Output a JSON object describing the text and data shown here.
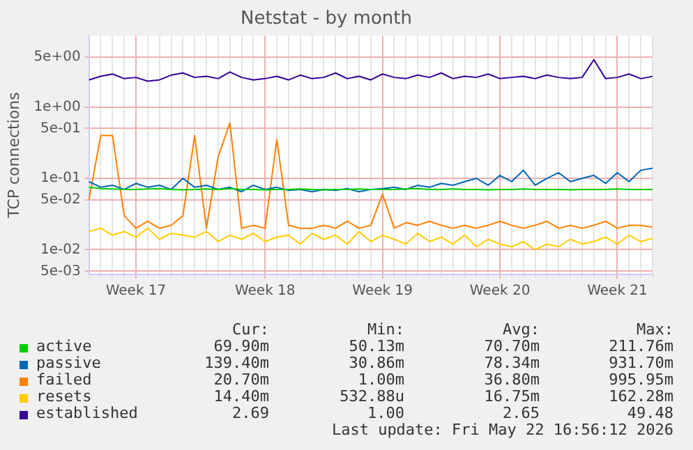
{
  "chart_data": {
    "type": "line",
    "title": "Netstat - by month",
    "ylabel": "TCP connections",
    "categories": [
      null,
      null,
      null,
      null,
      "Week 17",
      null,
      null,
      null,
      null,
      null,
      null,
      null,
      null,
      null,
      null,
      "Week 18",
      null,
      null,
      null,
      null,
      null,
      null,
      null,
      null,
      null,
      "Week 19",
      null,
      null,
      null,
      null,
      null,
      null,
      null,
      null,
      null,
      "Week 20",
      null,
      null,
      null,
      null,
      null,
      null,
      null,
      null,
      null,
      "Week 21",
      null,
      null,
      null
    ],
    "log": "y",
    "ylim": [
      0.0045,
      10
    ],
    "yticks": [
      {
        "value": 5,
        "label": "5e+00"
      },
      {
        "value": 1,
        "label": "1e+00"
      },
      {
        "value": 0.5,
        "label": "5e-01"
      },
      {
        "value": 0.1,
        "label": "1e-01"
      },
      {
        "value": 0.05,
        "label": "5e-02"
      },
      {
        "value": 0.01,
        "label": "1e-02"
      },
      {
        "value": 0.005,
        "label": "5e-03"
      }
    ],
    "grid": true,
    "legend": "bottom",
    "marker": "none",
    "series": [
      {
        "name": "active",
        "color": "#00cc00",
        "values": [
          0.075,
          0.072,
          0.071,
          0.07,
          0.07,
          0.071,
          0.072,
          0.07,
          0.069,
          0.07,
          0.071,
          0.07,
          0.072,
          0.07,
          0.07,
          0.069,
          0.07,
          0.07,
          0.071,
          0.07,
          0.069,
          0.07,
          0.07,
          0.071,
          0.07,
          0.07,
          0.07,
          0.071,
          0.072,
          0.07,
          0.07,
          0.071,
          0.07,
          0.07,
          0.069,
          0.07,
          0.07,
          0.071,
          0.07,
          0.07,
          0.07,
          0.069,
          0.07,
          0.07,
          0.07,
          0.071,
          0.07,
          0.07,
          0.07
        ]
      },
      {
        "name": "passive",
        "color": "#0066b3",
        "values": [
          0.09,
          0.075,
          0.08,
          0.07,
          0.085,
          0.075,
          0.08,
          0.07,
          0.1,
          0.075,
          0.08,
          0.07,
          0.075,
          0.065,
          0.08,
          0.07,
          0.075,
          0.068,
          0.07,
          0.065,
          0.07,
          0.068,
          0.072,
          0.065,
          0.07,
          0.072,
          0.075,
          0.07,
          0.08,
          0.075,
          0.085,
          0.08,
          0.09,
          0.1,
          0.08,
          0.11,
          0.09,
          0.13,
          0.08,
          0.1,
          0.12,
          0.09,
          0.1,
          0.11,
          0.085,
          0.12,
          0.09,
          0.13,
          0.139
        ]
      },
      {
        "name": "failed",
        "color": "#ff8000",
        "values": [
          0.05,
          0.4,
          0.4,
          0.03,
          0.02,
          0.025,
          0.02,
          0.022,
          0.03,
          0.4,
          0.02,
          0.2,
          0.6,
          0.02,
          0.022,
          0.02,
          0.35,
          0.022,
          0.02,
          0.02,
          0.022,
          0.02,
          0.025,
          0.02,
          0.022,
          0.06,
          0.02,
          0.024,
          0.022,
          0.025,
          0.022,
          0.02,
          0.022,
          0.02,
          0.022,
          0.025,
          0.022,
          0.02,
          0.022,
          0.025,
          0.02,
          0.022,
          0.02,
          0.022,
          0.025,
          0.02,
          0.022,
          0.022,
          0.0207
        ]
      },
      {
        "name": "resets",
        "color": "#ffcc00",
        "values": [
          0.018,
          0.02,
          0.016,
          0.018,
          0.015,
          0.02,
          0.014,
          0.017,
          0.016,
          0.015,
          0.018,
          0.013,
          0.016,
          0.014,
          0.017,
          0.013,
          0.015,
          0.016,
          0.012,
          0.017,
          0.014,
          0.016,
          0.012,
          0.018,
          0.013,
          0.016,
          0.014,
          0.012,
          0.017,
          0.013,
          0.015,
          0.012,
          0.016,
          0.011,
          0.014,
          0.012,
          0.011,
          0.013,
          0.01,
          0.012,
          0.011,
          0.014,
          0.012,
          0.013,
          0.015,
          0.012,
          0.016,
          0.013,
          0.0144
        ]
      },
      {
        "name": "established",
        "color": "#330099",
        "values": [
          2.4,
          2.7,
          2.9,
          2.5,
          2.6,
          2.3,
          2.4,
          2.8,
          3.0,
          2.6,
          2.7,
          2.5,
          3.1,
          2.6,
          2.4,
          2.5,
          2.7,
          2.4,
          2.8,
          2.5,
          2.6,
          3.0,
          2.5,
          2.7,
          2.4,
          2.9,
          2.6,
          2.5,
          2.8,
          2.6,
          3.0,
          2.5,
          2.7,
          2.6,
          2.9,
          2.5,
          2.6,
          2.7,
          2.5,
          2.8,
          2.6,
          2.5,
          2.6,
          4.6,
          2.5,
          2.6,
          2.9,
          2.5,
          2.69
        ]
      }
    ],
    "annotations": [
      "Cur:",
      "Min:",
      "Avg:",
      "Max:",
      "69.90m",
      "50.13m",
      "70.70m",
      "211.76m",
      "139.40m",
      "30.86m",
      "78.34m",
      "931.70m",
      "20.70m",
      "1.00m",
      "36.80m",
      "995.95m",
      "14.40m",
      "532.88u",
      "16.75m",
      "162.28m",
      "2.69",
      "1.00",
      "2.65",
      "49.48",
      "Last update: Fri May 22 16:56:12 2026"
    ]
  }
}
